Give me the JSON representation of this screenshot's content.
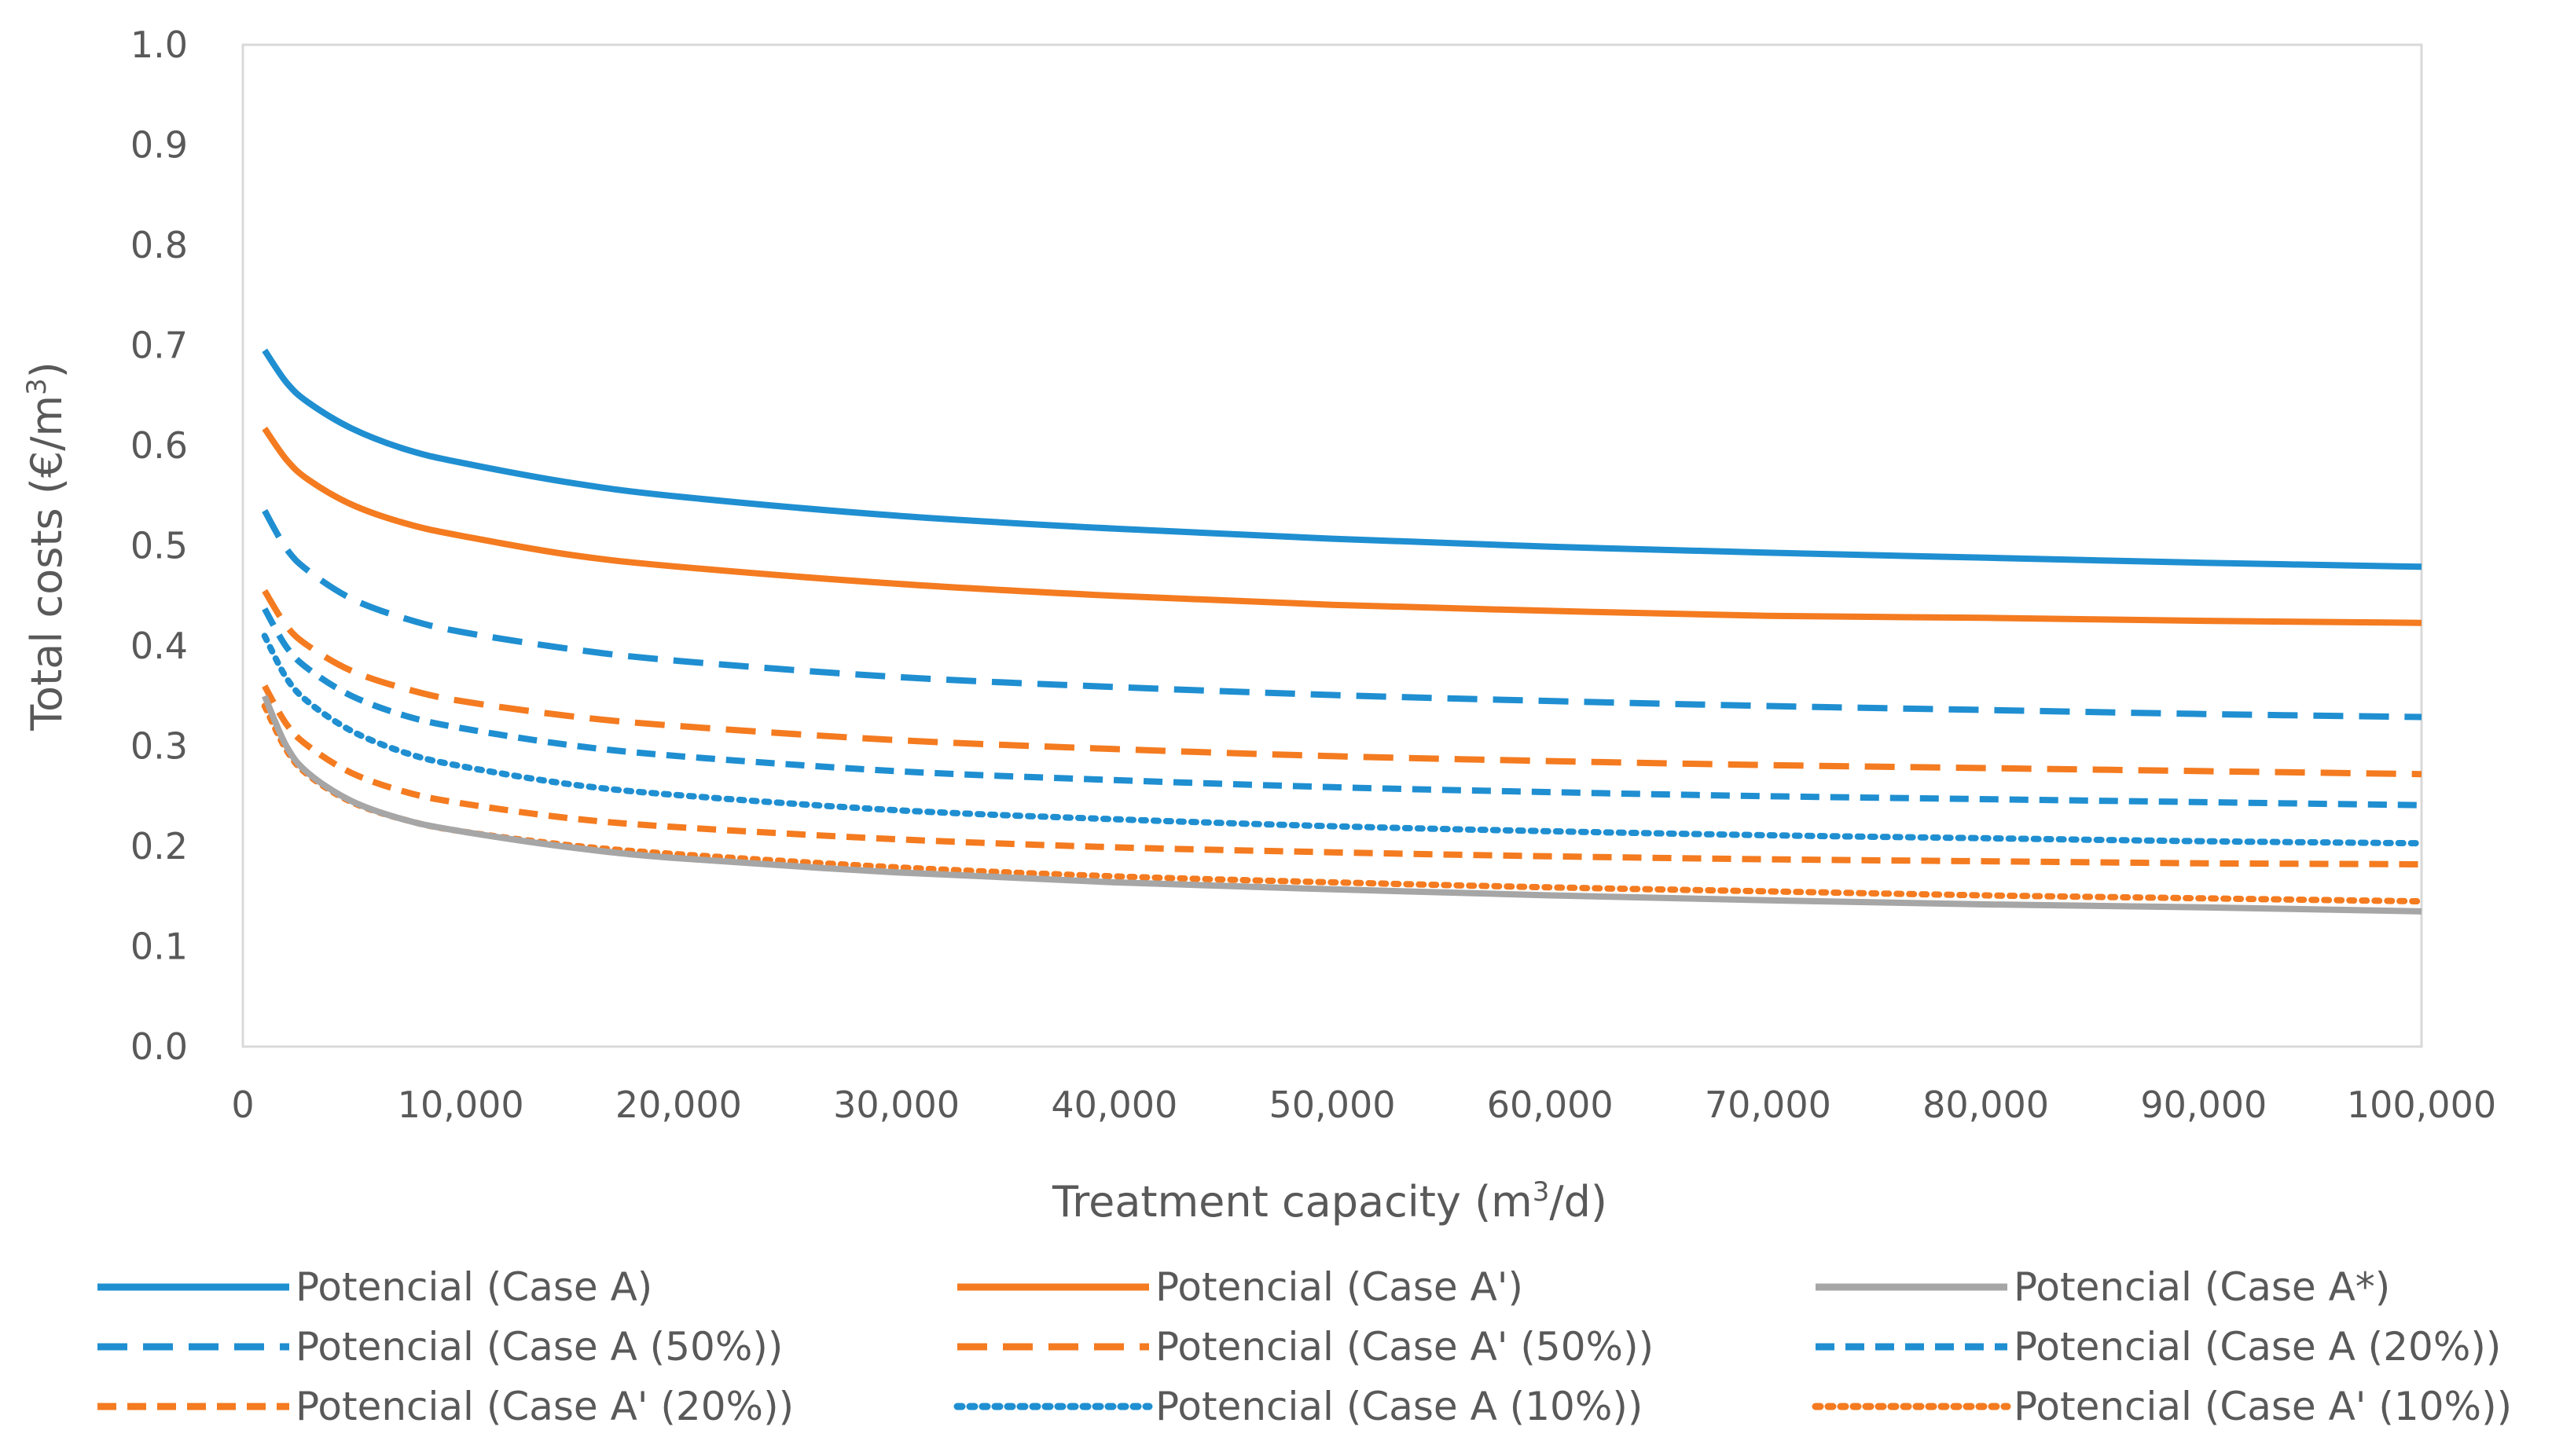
{
  "chart_data": {
    "type": "line",
    "title": "",
    "xlabel": "Treatment capacity (m3/d)",
    "xlabel_parts": {
      "before": "Treatment capacity (m",
      "sup": "3",
      "after": "/d)"
    },
    "ylabel": "Total costs (€/m3)",
    "ylabel_parts": {
      "before": "Total costs (€/m",
      "sup": "3",
      "after": ")"
    },
    "xlim": [
      0,
      100000
    ],
    "ylim": [
      0,
      1.0
    ],
    "x_ticks": [
      "0",
      "10,000",
      "20,000",
      "30,000",
      "40,000",
      "50,000",
      "60,000",
      "70,000",
      "80,000",
      "90,000",
      "100,000"
    ],
    "x_tick_values": [
      0,
      10000,
      20000,
      30000,
      40000,
      50000,
      60000,
      70000,
      80000,
      90000,
      100000
    ],
    "y_ticks": [
      "0.0",
      "0.1",
      "0.2",
      "0.3",
      "0.4",
      "0.5",
      "0.6",
      "0.7",
      "0.8",
      "0.9",
      "1.0"
    ],
    "y_tick_values": [
      0,
      0.1,
      0.2,
      0.3,
      0.4,
      0.5,
      0.6,
      0.7,
      0.8,
      0.9,
      1.0
    ],
    "grid": false,
    "legend_position": "bottom",
    "x": [
      1000,
      2000,
      3000,
      5000,
      7500,
      10000,
      15000,
      20000,
      30000,
      40000,
      50000,
      60000,
      70000,
      80000,
      90000,
      100000
    ],
    "series": [
      {
        "name": "Potencial (Case A)",
        "color": "#1f8fd1",
        "style": "solid",
        "values": [
          0.695,
          0.663,
          0.643,
          0.617,
          0.596,
          0.583,
          0.563,
          0.549,
          0.53,
          0.517,
          0.507,
          0.499,
          0.493,
          0.488,
          0.483,
          0.479
        ]
      },
      {
        "name": "Potencial (Case A')",
        "color": "#f47b20",
        "style": "solid",
        "values": [
          0.617,
          0.586,
          0.566,
          0.541,
          0.522,
          0.51,
          0.491,
          0.479,
          0.462,
          0.45,
          0.441,
          0.435,
          0.43,
          0.428,
          0.425,
          0.423
        ]
      },
      {
        "name": "Potencial (Case A*)",
        "color": "#a6a6a6",
        "style": "solid",
        "values": [
          0.35,
          0.3,
          0.273,
          0.245,
          0.226,
          0.215,
          0.199,
          0.188,
          0.174,
          0.164,
          0.157,
          0.151,
          0.146,
          0.142,
          0.139,
          0.135
        ]
      },
      {
        "name": "Potencial (Case A (50%))",
        "color": "#1f8fd1",
        "style": "dash-long",
        "values": [
          0.535,
          0.497,
          0.475,
          0.447,
          0.427,
          0.414,
          0.397,
          0.385,
          0.369,
          0.359,
          0.351,
          0.345,
          0.34,
          0.336,
          0.332,
          0.329
        ]
      },
      {
        "name": "Potencial (Case A' (50%))",
        "color": "#f47b20",
        "style": "dash-long",
        "values": [
          0.455,
          0.42,
          0.4,
          0.375,
          0.357,
          0.345,
          0.33,
          0.32,
          0.306,
          0.297,
          0.29,
          0.285,
          0.281,
          0.278,
          0.275,
          0.272
        ]
      },
      {
        "name": "Potencial (Case A (20%))",
        "color": "#1f8fd1",
        "style": "dash-short",
        "values": [
          0.437,
          0.399,
          0.377,
          0.35,
          0.33,
          0.318,
          0.301,
          0.29,
          0.275,
          0.266,
          0.259,
          0.254,
          0.25,
          0.247,
          0.244,
          0.241
        ]
      },
      {
        "name": "Potencial (Case A' (20%))",
        "color": "#f47b20",
        "style": "dash-short",
        "values": [
          0.36,
          0.322,
          0.3,
          0.273,
          0.254,
          0.243,
          0.228,
          0.219,
          0.207,
          0.199,
          0.194,
          0.19,
          0.187,
          0.185,
          0.183,
          0.182
        ]
      },
      {
        "name": "Potencial (Case A (10%))",
        "color": "#1f8fd1",
        "style": "dot",
        "values": [
          0.41,
          0.368,
          0.344,
          0.315,
          0.293,
          0.28,
          0.262,
          0.251,
          0.236,
          0.227,
          0.22,
          0.215,
          0.211,
          0.208,
          0.205,
          0.203
        ]
      },
      {
        "name": "Potencial (Case A' (10%))",
        "color": "#f47b20",
        "style": "dot",
        "values": [
          0.34,
          0.296,
          0.271,
          0.244,
          0.226,
          0.215,
          0.201,
          0.192,
          0.179,
          0.17,
          0.164,
          0.159,
          0.155,
          0.151,
          0.148,
          0.145
        ]
      }
    ]
  }
}
